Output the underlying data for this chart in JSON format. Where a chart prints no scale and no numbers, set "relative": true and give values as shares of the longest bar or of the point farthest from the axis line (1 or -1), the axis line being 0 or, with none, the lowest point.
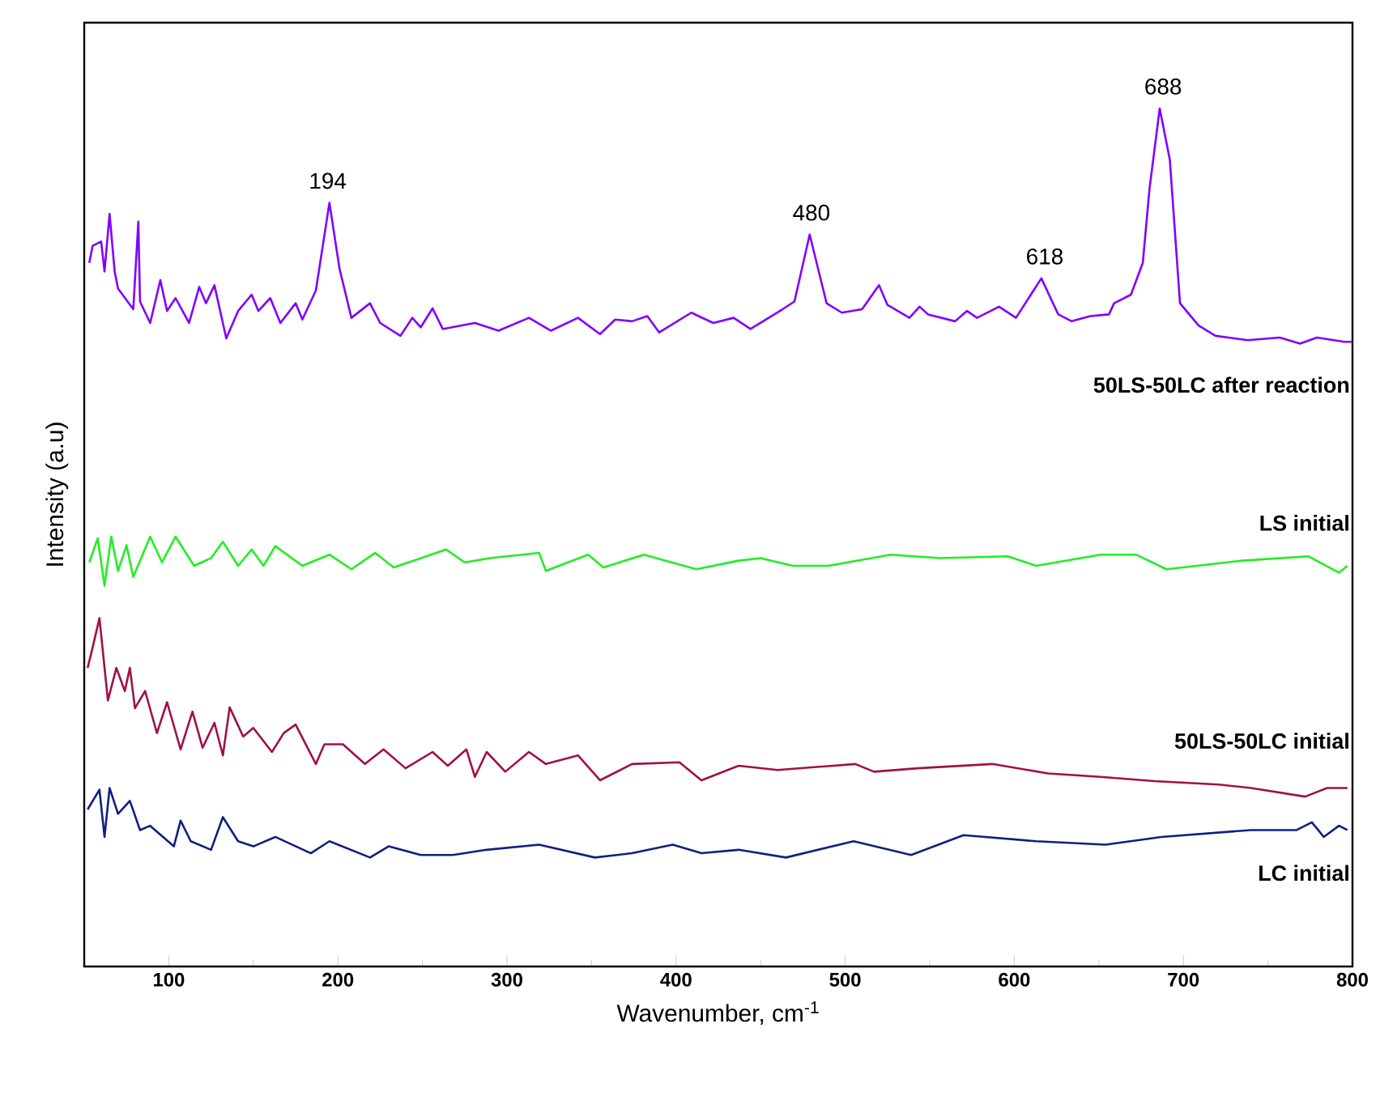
{
  "chart_data": {
    "type": "line",
    "xlabel": "Wavenumber, cm$^{-1}$",
    "ylabel": "Intensity (a.u)",
    "relative": true,
    "xlim": [
      50,
      800
    ],
    "xticks": [
      100,
      200,
      300,
      400,
      500,
      600,
      700,
      800
    ],
    "annotations": [
      {
        "text": "194",
        "x": 194,
        "y": 0.89
      },
      {
        "text": "480",
        "x": 480,
        "y": 0.853
      },
      {
        "text": "618",
        "x": 618,
        "y": 0.802
      },
      {
        "text": "688",
        "x": 688,
        "y": 1.0
      }
    ],
    "series": [
      {
        "name": "50LS-50LC after reaction",
        "color": "#8000ff",
        "x": [
          53,
          55,
          60,
          62,
          65,
          68,
          70,
          79,
          82,
          83,
          89,
          95,
          99,
          104,
          112,
          118,
          122,
          127,
          134,
          141,
          149,
          153,
          160,
          166,
          175,
          179,
          187,
          195,
          201,
          208,
          219,
          225,
          237,
          244,
          249,
          256,
          262,
          281,
          295,
          313,
          326,
          342,
          355,
          364,
          374,
          383,
          390,
          409,
          422,
          434,
          444,
          463,
          470,
          479,
          489,
          498,
          510,
          520,
          525,
          538,
          544,
          549,
          565,
          572,
          578,
          591,
          601,
          616,
          626,
          634,
          645,
          656,
          659,
          669,
          676,
          680,
          686,
          692,
          698,
          709,
          719,
          738,
          757,
          769,
          779,
          795,
          800
        ],
        "values": [
          0.82,
          0.84,
          0.845,
          0.81,
          0.877,
          0.81,
          0.79,
          0.766,
          0.868,
          0.775,
          0.75,
          0.8,
          0.764,
          0.779,
          0.75,
          0.792,
          0.773,
          0.794,
          0.732,
          0.764,
          0.783,
          0.764,
          0.779,
          0.75,
          0.773,
          0.754,
          0.788,
          0.89,
          0.813,
          0.756,
          0.773,
          0.75,
          0.735,
          0.756,
          0.745,
          0.767,
          0.743,
          0.75,
          0.741,
          0.756,
          0.741,
          0.756,
          0.737,
          0.754,
          0.752,
          0.758,
          0.739,
          0.762,
          0.75,
          0.756,
          0.743,
          0.766,
          0.775,
          0.853,
          0.773,
          0.762,
          0.766,
          0.794,
          0.771,
          0.756,
          0.769,
          0.76,
          0.752,
          0.764,
          0.756,
          0.769,
          0.756,
          0.802,
          0.76,
          0.752,
          0.758,
          0.76,
          0.773,
          0.783,
          0.82,
          0.907,
          1.0,
          0.94,
          0.773,
          0.747,
          0.735,
          0.73,
          0.733,
          0.726,
          0.733,
          0.728,
          0.728
        ]
      },
      {
        "name": "LS initial",
        "color": "#22ee22",
        "x": [
          53,
          58,
          62,
          66,
          70,
          75,
          79,
          89,
          96,
          104,
          115,
          125,
          132,
          141,
          149,
          156,
          163,
          179,
          195,
          208,
          222,
          233,
          264,
          275,
          290,
          319,
          323,
          348,
          357,
          381,
          412,
          437,
          450,
          469,
          490,
          527,
          556,
          596,
          613,
          651,
          672,
          690,
          735,
          774,
          792,
          797
        ],
        "values": [
          0.471,
          0.499,
          0.444,
          0.501,
          0.461,
          0.491,
          0.454,
          0.501,
          0.471,
          0.501,
          0.467,
          0.476,
          0.495,
          0.467,
          0.486,
          0.467,
          0.49,
          0.467,
          0.48,
          0.463,
          0.482,
          0.465,
          0.486,
          0.471,
          0.476,
          0.482,
          0.461,
          0.48,
          0.465,
          0.48,
          0.463,
          0.473,
          0.476,
          0.467,
          0.467,
          0.48,
          0.476,
          0.478,
          0.467,
          0.48,
          0.48,
          0.463,
          0.473,
          0.478,
          0.459,
          0.467
        ]
      },
      {
        "name": "50LS-50LC initial",
        "color": "#a0104a",
        "x": [
          52,
          55,
          59,
          64,
          69,
          74,
          77,
          80,
          86,
          93,
          99,
          107,
          114,
          120,
          127,
          132,
          136,
          144,
          150,
          161,
          168,
          175,
          187,
          192,
          203,
          216,
          227,
          240,
          256,
          265,
          276,
          281,
          288,
          299,
          313,
          323,
          342,
          355,
          374,
          402,
          415,
          437,
          460,
          506,
          517,
          543,
          587,
          620,
          651,
          683,
          721,
          740,
          772,
          785,
          797
        ],
        "values": [
          0.348,
          0.372,
          0.406,
          0.31,
          0.348,
          0.321,
          0.348,
          0.301,
          0.321,
          0.272,
          0.308,
          0.253,
          0.297,
          0.255,
          0.284,
          0.246,
          0.302,
          0.268,
          0.278,
          0.25,
          0.272,
          0.282,
          0.236,
          0.259,
          0.259,
          0.236,
          0.253,
          0.231,
          0.25,
          0.234,
          0.253,
          0.221,
          0.25,
          0.227,
          0.25,
          0.236,
          0.246,
          0.217,
          0.236,
          0.238,
          0.217,
          0.234,
          0.229,
          0.236,
          0.227,
          0.231,
          0.236,
          0.225,
          0.221,
          0.216,
          0.212,
          0.208,
          0.198,
          0.208,
          0.208
        ]
      },
      {
        "name": "LC initial",
        "color": "#102080",
        "x": [
          52,
          59,
          62,
          65,
          70,
          77,
          83,
          89,
          103,
          107,
          113,
          125,
          132,
          141,
          150,
          163,
          184,
          195,
          219,
          230,
          249,
          268,
          288,
          319,
          352,
          374,
          398,
          415,
          437,
          465,
          505,
          539,
          570,
          613,
          654,
          687,
          740,
          767,
          776,
          783,
          792,
          797
        ],
        "values": [
          0.183,
          0.206,
          0.151,
          0.208,
          0.178,
          0.193,
          0.159,
          0.164,
          0.14,
          0.17,
          0.146,
          0.136,
          0.174,
          0.146,
          0.14,
          0.151,
          0.132,
          0.146,
          0.127,
          0.14,
          0.13,
          0.13,
          0.136,
          0.142,
          0.127,
          0.132,
          0.142,
          0.132,
          0.136,
          0.127,
          0.146,
          0.13,
          0.153,
          0.146,
          0.142,
          0.151,
          0.159,
          0.159,
          0.168,
          0.151,
          0.164,
          0.159
        ]
      }
    ]
  }
}
